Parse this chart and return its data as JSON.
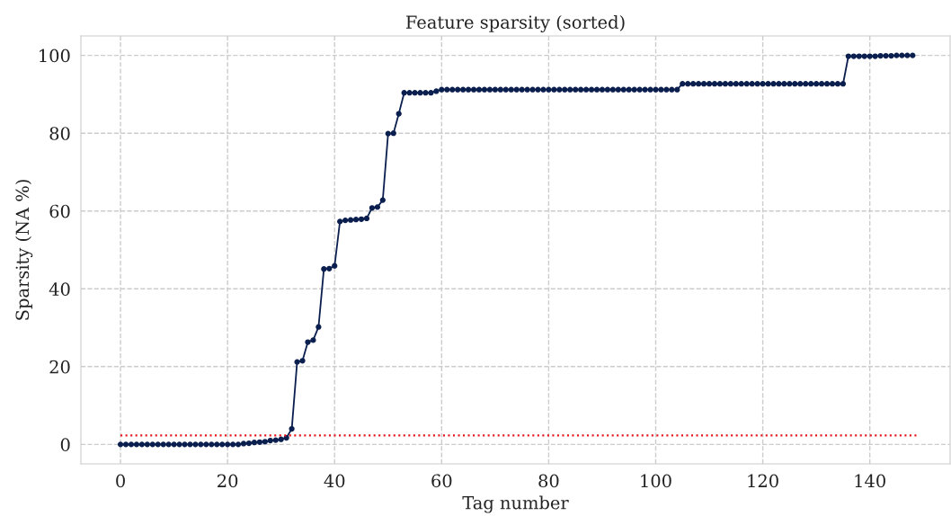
{
  "chart_data": {
    "type": "line",
    "title": "Feature sparsity (sorted)",
    "xlabel": "Tag number",
    "ylabel": "Sparsity (NA %)",
    "xlim": [
      -7.4,
      155
    ],
    "ylim": [
      -5,
      105
    ],
    "xticks": [
      0,
      20,
      40,
      60,
      80,
      100,
      120,
      140
    ],
    "yticks": [
      0,
      20,
      40,
      60,
      80,
      100
    ],
    "grid": true,
    "series": [
      {
        "color": "#0b1f4f",
        "marker": "circle",
        "line_style": "solid",
        "x": [
          0,
          1,
          2,
          3,
          4,
          5,
          6,
          7,
          8,
          9,
          10,
          11,
          12,
          13,
          14,
          15,
          16,
          17,
          18,
          19,
          20,
          21,
          22,
          23,
          24,
          25,
          26,
          27,
          28,
          29,
          30,
          31,
          32,
          33,
          34,
          35,
          36,
          37,
          38,
          39,
          40,
          41,
          42,
          43,
          44,
          45,
          46,
          47,
          48,
          49,
          50,
          51,
          52,
          53,
          54,
          55,
          56,
          57,
          58,
          59,
          60,
          61,
          62,
          63,
          64,
          65,
          66,
          67,
          68,
          69,
          70,
          71,
          72,
          73,
          74,
          75,
          76,
          77,
          78,
          79,
          80,
          81,
          82,
          83,
          84,
          85,
          86,
          87,
          88,
          89,
          90,
          91,
          92,
          93,
          94,
          95,
          96,
          97,
          98,
          99,
          100,
          101,
          102,
          103,
          104,
          105,
          106,
          107,
          108,
          109,
          110,
          111,
          112,
          113,
          114,
          115,
          116,
          117,
          118,
          119,
          120,
          121,
          122,
          123,
          124,
          125,
          126,
          127,
          128,
          129,
          130,
          131,
          132,
          133,
          134,
          135,
          136,
          137,
          138,
          139,
          140,
          141,
          142,
          143,
          144,
          145,
          146,
          147,
          148
        ],
        "values": [
          0,
          0,
          0,
          0,
          0,
          0,
          0,
          0,
          0,
          0,
          0,
          0,
          0,
          0,
          0,
          0,
          0,
          0,
          0,
          0,
          0,
          0,
          0,
          0.2,
          0.3,
          0.5,
          0.6,
          0.7,
          1.0,
          1.1,
          1.3,
          1.7,
          4.0,
          21.2,
          21.5,
          26.3,
          26.8,
          30.2,
          45.1,
          45.2,
          45.9,
          57.3,
          57.6,
          57.7,
          57.8,
          57.9,
          58.1,
          60.8,
          61.0,
          62.8,
          79.9,
          80.0,
          85.0,
          90.4,
          90.4,
          90.4,
          90.4,
          90.4,
          90.4,
          90.8,
          91.2,
          91.2,
          91.2,
          91.2,
          91.2,
          91.2,
          91.2,
          91.2,
          91.2,
          91.2,
          91.2,
          91.2,
          91.2,
          91.2,
          91.2,
          91.2,
          91.2,
          91.2,
          91.2,
          91.2,
          91.2,
          91.2,
          91.2,
          91.2,
          91.2,
          91.2,
          91.2,
          91.2,
          91.2,
          91.2,
          91.2,
          91.2,
          91.2,
          91.2,
          91.2,
          91.2,
          91.2,
          91.2,
          91.2,
          91.2,
          91.2,
          91.2,
          91.2,
          91.2,
          91.2,
          92.7,
          92.7,
          92.7,
          92.7,
          92.7,
          92.7,
          92.7,
          92.7,
          92.7,
          92.7,
          92.7,
          92.7,
          92.7,
          92.7,
          92.7,
          92.7,
          92.7,
          92.7,
          92.7,
          92.7,
          92.7,
          92.7,
          92.7,
          92.7,
          92.7,
          92.7,
          92.7,
          92.7,
          92.7,
          92.7,
          92.7,
          99.8,
          99.8,
          99.8,
          99.8,
          99.8,
          99.8,
          99.9,
          99.9,
          99.9,
          100,
          100,
          100,
          100
        ]
      },
      {
        "color": "#e8141c",
        "marker": "none",
        "line_style": "dotted",
        "x": [
          0,
          149
        ],
        "values": [
          2.3,
          2.3
        ]
      }
    ]
  }
}
